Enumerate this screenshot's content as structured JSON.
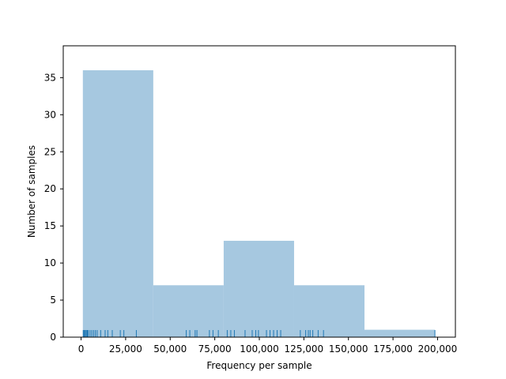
{
  "chart_data": {
    "type": "bar",
    "title": "",
    "xlabel": "Frequency per sample",
    "ylabel": "Number of samples",
    "xlim": [
      -10000,
      210000
    ],
    "ylim": [
      0,
      39.3
    ],
    "bins": [
      {
        "x0": 1000,
        "x1": 40500,
        "count": 36
      },
      {
        "x0": 40500,
        "x1": 80000,
        "count": 7
      },
      {
        "x0": 80000,
        "x1": 119500,
        "count": 13
      },
      {
        "x0": 119500,
        "x1": 159000,
        "count": 7
      },
      {
        "x0": 159000,
        "x1": 198500,
        "count": 1
      }
    ],
    "rug": [
      1200,
      1600,
      2000,
      2500,
      3000,
      3500,
      4000,
      5000,
      6000,
      7000,
      8000,
      9000,
      11000,
      13500,
      15000,
      17500,
      22000,
      24000,
      31000,
      59000,
      61000,
      64000,
      65000,
      72000,
      74000,
      77000,
      82000,
      84000,
      86000,
      92000,
      96000,
      98000,
      99500,
      104000,
      106000,
      108000,
      110000,
      112000,
      123000,
      126000,
      127500,
      128500,
      130000,
      133000,
      136000,
      198500
    ],
    "xticks": [
      {
        "value": 0,
        "label": "0"
      },
      {
        "value": 25000,
        "label": "25,000"
      },
      {
        "value": 50000,
        "label": "50,000"
      },
      {
        "value": 75000,
        "label": "75,000"
      },
      {
        "value": 100000,
        "label": "100,000"
      },
      {
        "value": 125000,
        "label": "125,000"
      },
      {
        "value": 150000,
        "label": "150,000"
      },
      {
        "value": 175000,
        "label": "175,000"
      },
      {
        "value": 200000,
        "label": "200,000"
      }
    ],
    "yticks": [
      {
        "value": 0,
        "label": "0"
      },
      {
        "value": 5,
        "label": "5"
      },
      {
        "value": 10,
        "label": "10"
      },
      {
        "value": 15,
        "label": "15"
      },
      {
        "value": 20,
        "label": "20"
      },
      {
        "value": 25,
        "label": "25"
      },
      {
        "value": 30,
        "label": "30"
      },
      {
        "value": 35,
        "label": "35"
      }
    ],
    "grid": false,
    "legend": "none",
    "colors": {
      "bar_fill": "#a6c8e0",
      "rug": "#1f77b4",
      "axes": "#000000"
    }
  }
}
